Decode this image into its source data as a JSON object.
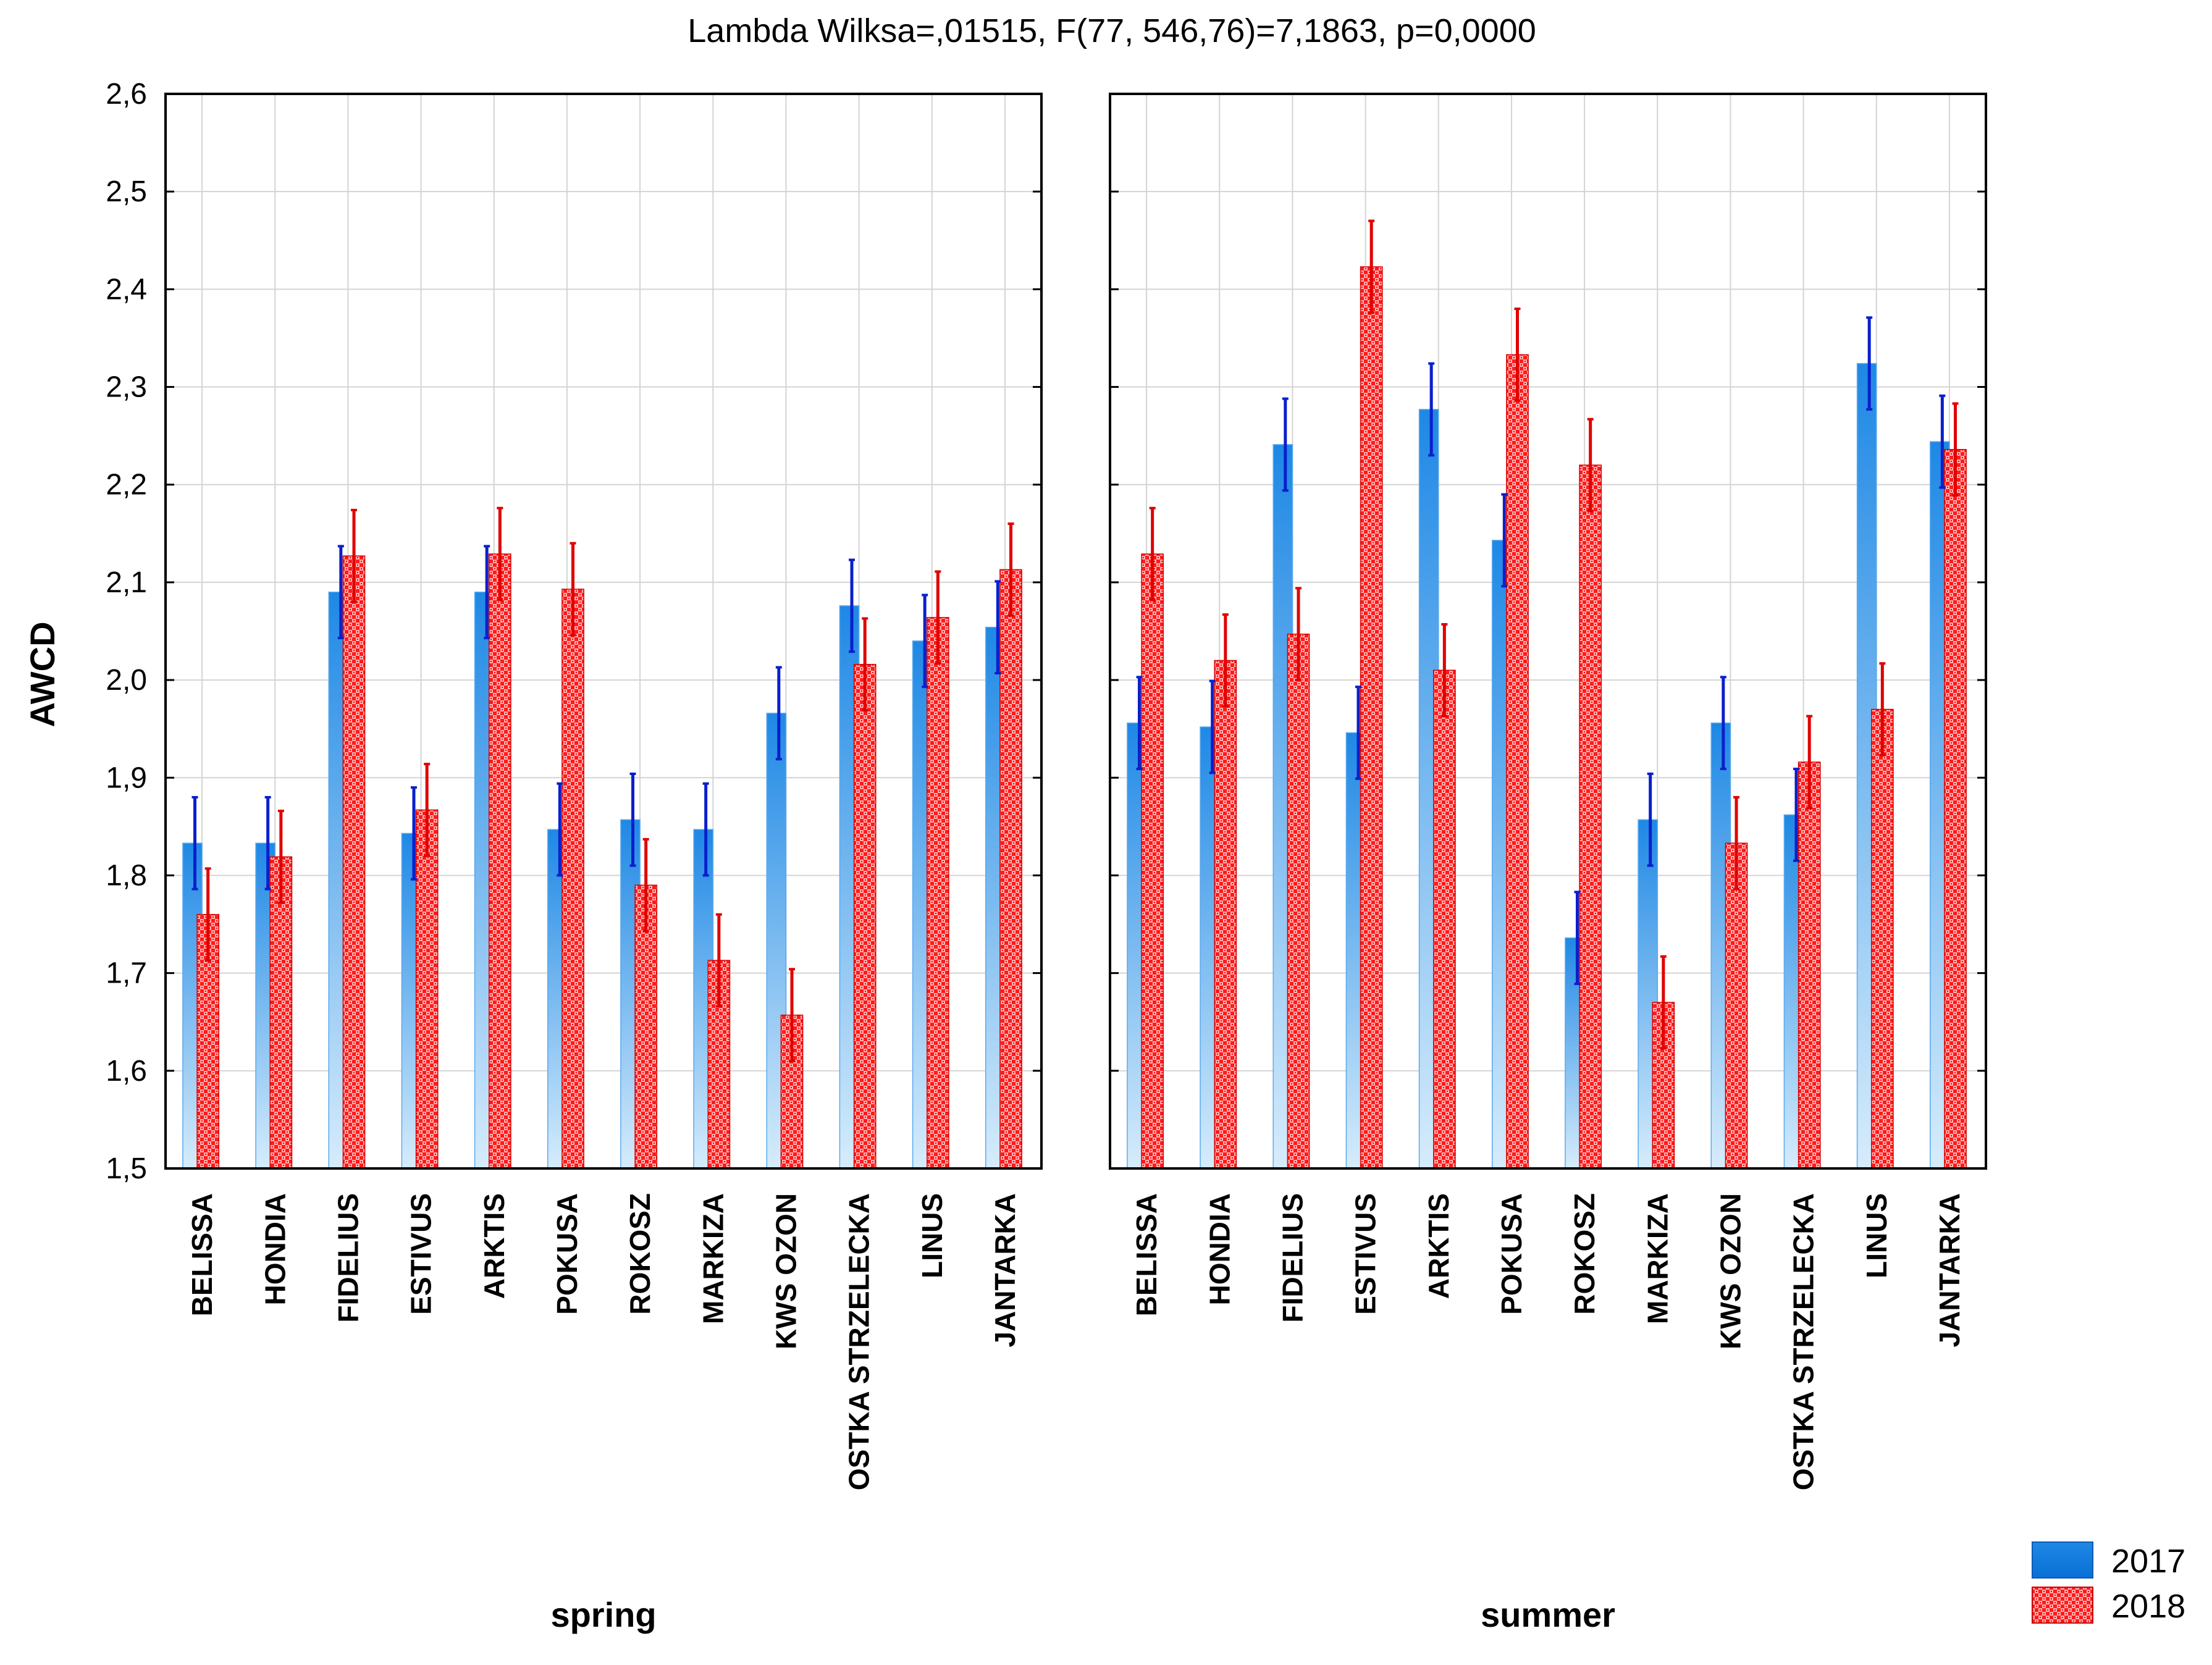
{
  "chart_data": {
    "type": "bar",
    "title": "Lambda Wilksa=,01515, F(77, 546,76)=7,1863, p=0,0000",
    "ylabel": "AWCD",
    "ylim": [
      1.5,
      2.6
    ],
    "yticks": [
      "1,5",
      "1,6",
      "1,7",
      "1,8",
      "1,9",
      "2,0",
      "2,1",
      "2,2",
      "2,3",
      "2,4",
      "2,5",
      "2,6"
    ],
    "grid": true,
    "legend_position": "bottom-right",
    "categories": [
      "BELISSA",
      "HONDIA",
      "FIDELIUS",
      "ESTIVUS",
      "ARKTIS",
      "POKUSA",
      "ROKOSZ",
      "MARKIZA",
      "KWS OZON",
      "OSTKA STRZELECKA",
      "LINUS",
      "JANTARKA"
    ],
    "series_styles": [
      {
        "name": "2017",
        "color": "#1e88e5",
        "pattern": "solid-gradient"
      },
      {
        "name": "2018",
        "color": "#ff1a1a",
        "pattern": "checker"
      }
    ],
    "panels": [
      {
        "label": "spring",
        "series": [
          {
            "name": "2017",
            "values": [
              1.833,
              1.833,
              2.09,
              1.843,
              2.09,
              1.847,
              1.857,
              1.847,
              1.966,
              2.076,
              2.04,
              2.054
            ],
            "errors": [
              0.047,
              0.047,
              0.047,
              0.047,
              0.047,
              0.047,
              0.047,
              0.047,
              0.047,
              0.047,
              0.047,
              0.047
            ]
          },
          {
            "name": "2018",
            "values": [
              1.76,
              1.819,
              2.127,
              1.867,
              2.129,
              2.093,
              1.79,
              1.713,
              1.657,
              2.016,
              2.064,
              2.113
            ],
            "errors": [
              0.047,
              0.047,
              0.047,
              0.047,
              0.047,
              0.047,
              0.047,
              0.047,
              0.047,
              0.047,
              0.047,
              0.047
            ]
          }
        ]
      },
      {
        "label": "summer",
        "series": [
          {
            "name": "2017",
            "values": [
              1.956,
              1.952,
              2.241,
              1.946,
              2.277,
              2.143,
              1.736,
              1.857,
              1.956,
              1.862,
              2.324,
              2.244
            ],
            "errors": [
              0.047,
              0.047,
              0.047,
              0.047,
              0.047,
              0.047,
              0.047,
              0.047,
              0.047,
              0.047,
              0.047,
              0.047
            ]
          },
          {
            "name": "2018",
            "values": [
              2.129,
              2.02,
              2.047,
              2.423,
              2.01,
              2.333,
              2.22,
              1.67,
              1.833,
              1.916,
              1.97,
              2.236
            ],
            "errors": [
              0.047,
              0.047,
              0.047,
              0.047,
              0.047,
              0.047,
              0.047,
              0.047,
              0.047,
              0.047,
              0.047,
              0.047
            ]
          }
        ]
      }
    ]
  }
}
